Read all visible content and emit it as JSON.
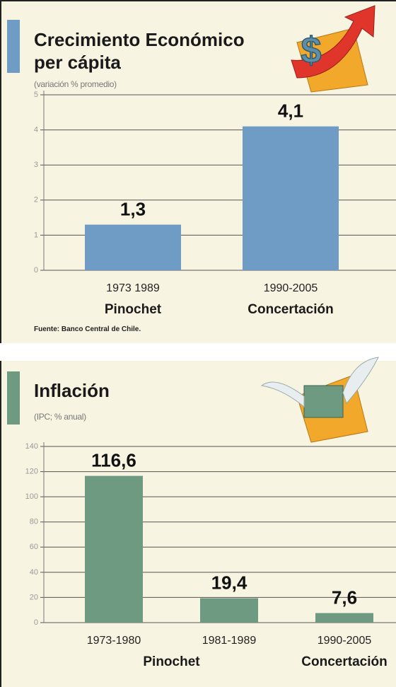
{
  "chart_data": [
    {
      "type": "bar",
      "title": "Crecimiento Económico per cápita",
      "subtitle": "(variación % promedio)",
      "categories": [
        "1973 1989",
        "1990-2005"
      ],
      "values": [
        1.3,
        4.1
      ],
      "value_labels": [
        "1,3",
        "4,1"
      ],
      "groups": [
        {
          "name": "Pinochet",
          "size": 1
        },
        {
          "name": "Concertación",
          "size": 1
        }
      ],
      "color": "#6f9cc4",
      "ylim": [
        0,
        5
      ],
      "yticks": [
        0,
        1,
        2,
        3,
        4,
        5
      ],
      "grid": true,
      "source": "Fuente: Banco Central de Chile."
    },
    {
      "type": "bar",
      "title": "Inflación",
      "subtitle": "(IPC; % anual)",
      "categories": [
        "1973-1980",
        "1981-1989",
        "1990-2005"
      ],
      "values": [
        116.6,
        19.4,
        7.6
      ],
      "value_labels": [
        "116,6",
        "19,4",
        "7,6"
      ],
      "groups": [
        {
          "name": "Pinochet",
          "size": 2
        },
        {
          "name": "Concertación",
          "size": 1
        }
      ],
      "color": "#6f9a82",
      "ylim": [
        0,
        140
      ],
      "yticks": [
        0,
        20,
        40,
        60,
        80,
        100,
        120,
        140
      ],
      "grid": true
    }
  ]
}
